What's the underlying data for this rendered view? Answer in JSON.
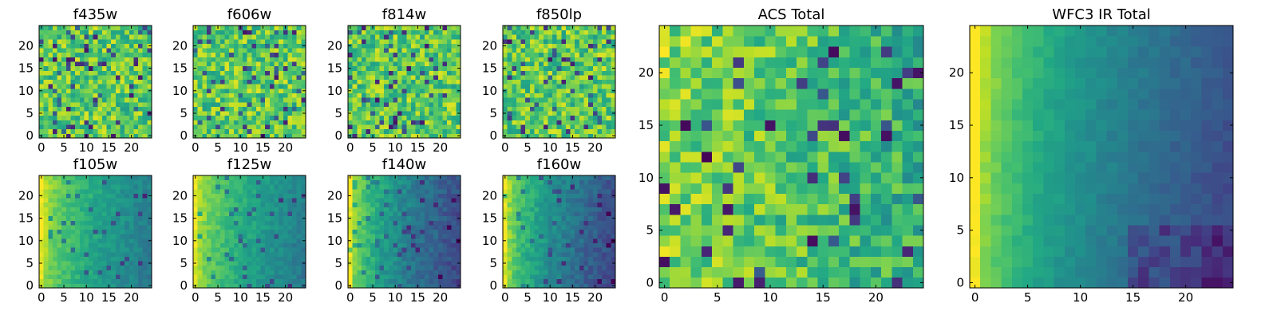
{
  "chart_data": {
    "type": "heatmap",
    "figure_description_grid": "2 rows of 4 small panels plus 2 large panels",
    "colormap": "viridis",
    "colors": {
      "viridis_low": "#440154",
      "viridis_mid": "#21918c",
      "viridis_high": "#fde725"
    },
    "panels": [
      {
        "id": "f435w",
        "title": "f435w",
        "size": 25,
        "pattern": "noise_bright",
        "x_ticks": [
          "0",
          "5",
          "10",
          "15",
          "20"
        ],
        "y_ticks": [
          "0",
          "5",
          "10",
          "15",
          "20"
        ]
      },
      {
        "id": "f606w",
        "title": "f606w",
        "size": 25,
        "pattern": "noise_bright",
        "x_ticks": [
          "0",
          "5",
          "10",
          "15",
          "20"
        ],
        "y_ticks": [
          "0",
          "5",
          "10",
          "15",
          "20"
        ]
      },
      {
        "id": "f814w",
        "title": "f814w",
        "size": 25,
        "pattern": "noise_bright",
        "x_ticks": [
          "0",
          "5",
          "10",
          "15",
          "20"
        ],
        "y_ticks": [
          "0",
          "5",
          "10",
          "15",
          "20"
        ]
      },
      {
        "id": "f850lp",
        "title": "f850lp",
        "size": 25,
        "pattern": "noise_bright",
        "x_ticks": [
          "0",
          "5",
          "10",
          "15",
          "20"
        ],
        "y_ticks": [
          "0",
          "5",
          "10",
          "15",
          "20"
        ]
      },
      {
        "id": "f105w",
        "title": "f105w",
        "size": 25,
        "pattern": "gradient_left",
        "x_ticks": [
          "0",
          "5",
          "10",
          "15",
          "20"
        ],
        "y_ticks": [
          "0",
          "5",
          "10",
          "15",
          "20"
        ]
      },
      {
        "id": "f125w",
        "title": "f125w",
        "size": 25,
        "pattern": "gradient_left",
        "x_ticks": [
          "0",
          "5",
          "10",
          "15",
          "20"
        ],
        "y_ticks": [
          "0",
          "5",
          "10",
          "15",
          "20"
        ]
      },
      {
        "id": "f140w",
        "title": "f140w",
        "size": 25,
        "pattern": "gradient_left_dark",
        "x_ticks": [
          "0",
          "5",
          "10",
          "15",
          "20"
        ],
        "y_ticks": [
          "0",
          "5",
          "10",
          "15",
          "20"
        ]
      },
      {
        "id": "f160w",
        "title": "f160w",
        "size": 25,
        "pattern": "gradient_left_dark",
        "x_ticks": [
          "0",
          "5",
          "10",
          "15",
          "20"
        ],
        "y_ticks": [
          "0",
          "5",
          "10",
          "15",
          "20"
        ]
      },
      {
        "id": "acs_total",
        "title": "ACS Total",
        "size": 25,
        "pattern": "noise_bright_left",
        "x_ticks": [
          "0",
          "5",
          "10",
          "15",
          "20"
        ],
        "y_ticks": [
          "0",
          "5",
          "10",
          "15",
          "20"
        ]
      },
      {
        "id": "wfc3_ir_total",
        "title": "WFC3 IR Total",
        "size": 25,
        "pattern": "gradient_left_smooth",
        "x_ticks": [
          "0",
          "5",
          "10",
          "15",
          "20"
        ],
        "y_ticks": [
          "0",
          "5",
          "10",
          "15",
          "20"
        ]
      }
    ]
  }
}
